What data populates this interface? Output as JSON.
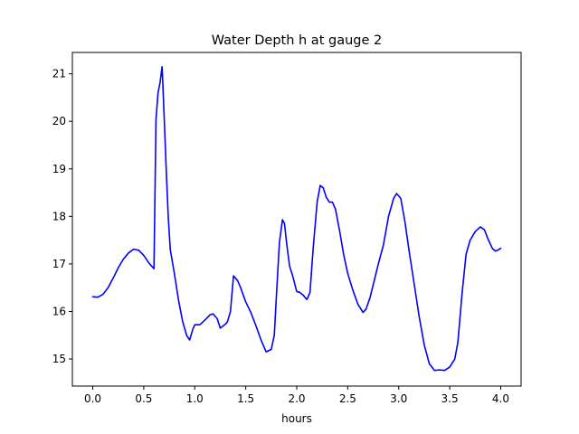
{
  "chart_data": {
    "type": "line",
    "title": "Water Depth h at gauge 2",
    "xlabel": "hours",
    "ylabel": "",
    "xlim": [
      -0.2,
      4.2
    ],
    "ylim": [
      14.43,
      21.45
    ],
    "xticks": [
      0.0,
      0.5,
      1.0,
      1.5,
      2.0,
      2.5,
      3.0,
      3.5,
      4.0
    ],
    "xtick_labels": [
      "0.0",
      "0.5",
      "1.0",
      "1.5",
      "2.0",
      "2.5",
      "3.0",
      "3.5",
      "4.0"
    ],
    "yticks": [
      15,
      16,
      17,
      18,
      19,
      20,
      21
    ],
    "ytick_labels": [
      "15",
      "16",
      "17",
      "18",
      "19",
      "20",
      "21"
    ],
    "grid": false,
    "series": [
      {
        "color": "#0000ff",
        "x": [
          0.0,
          0.05,
          0.1,
          0.15,
          0.2,
          0.25,
          0.3,
          0.35,
          0.4,
          0.45,
          0.5,
          0.55,
          0.6,
          0.62,
          0.64,
          0.66,
          0.68,
          0.7,
          0.72,
          0.74,
          0.76,
          0.8,
          0.84,
          0.88,
          0.92,
          0.95,
          0.98,
          1.0,
          1.05,
          1.1,
          1.15,
          1.18,
          1.22,
          1.25,
          1.3,
          1.32,
          1.35,
          1.38,
          1.42,
          1.45,
          1.5,
          1.55,
          1.6,
          1.65,
          1.7,
          1.75,
          1.78,
          1.8,
          1.83,
          1.86,
          1.88,
          1.9,
          1.93,
          1.96,
          2.0,
          2.03,
          2.06,
          2.1,
          2.13,
          2.16,
          2.2,
          2.23,
          2.26,
          2.29,
          2.32,
          2.35,
          2.38,
          2.42,
          2.46,
          2.5,
          2.55,
          2.6,
          2.65,
          2.68,
          2.72,
          2.76,
          2.8,
          2.85,
          2.9,
          2.95,
          2.98,
          3.02,
          3.06,
          3.1,
          3.15,
          3.2,
          3.25,
          3.3,
          3.35,
          3.4,
          3.45,
          3.5,
          3.55,
          3.58,
          3.62,
          3.66,
          3.7,
          3.75,
          3.8,
          3.84,
          3.88,
          3.92,
          3.95,
          3.98,
          4.0
        ],
        "y": [
          16.31,
          16.3,
          16.36,
          16.5,
          16.7,
          16.92,
          17.1,
          17.23,
          17.31,
          17.29,
          17.18,
          17.02,
          16.9,
          20.05,
          20.6,
          20.82,
          21.15,
          20.1,
          19.0,
          18.0,
          17.3,
          16.8,
          16.25,
          15.8,
          15.5,
          15.4,
          15.62,
          15.72,
          15.72,
          15.82,
          15.93,
          15.95,
          15.85,
          15.65,
          15.73,
          15.78,
          16.0,
          16.75,
          16.65,
          16.5,
          16.2,
          15.98,
          15.7,
          15.4,
          15.15,
          15.2,
          15.5,
          16.3,
          17.45,
          17.93,
          17.85,
          17.45,
          16.95,
          16.75,
          16.42,
          16.4,
          16.35,
          16.25,
          16.4,
          17.3,
          18.3,
          18.65,
          18.6,
          18.4,
          18.3,
          18.3,
          18.15,
          17.7,
          17.2,
          16.8,
          16.45,
          16.15,
          15.98,
          16.05,
          16.3,
          16.65,
          17.0,
          17.4,
          18.0,
          18.38,
          18.48,
          18.38,
          17.9,
          17.3,
          16.6,
          15.9,
          15.3,
          14.9,
          14.76,
          14.77,
          14.76,
          14.83,
          15.0,
          15.35,
          16.35,
          17.2,
          17.5,
          17.68,
          17.78,
          17.72,
          17.5,
          17.32,
          17.27,
          17.3,
          17.33
        ]
      }
    ]
  }
}
